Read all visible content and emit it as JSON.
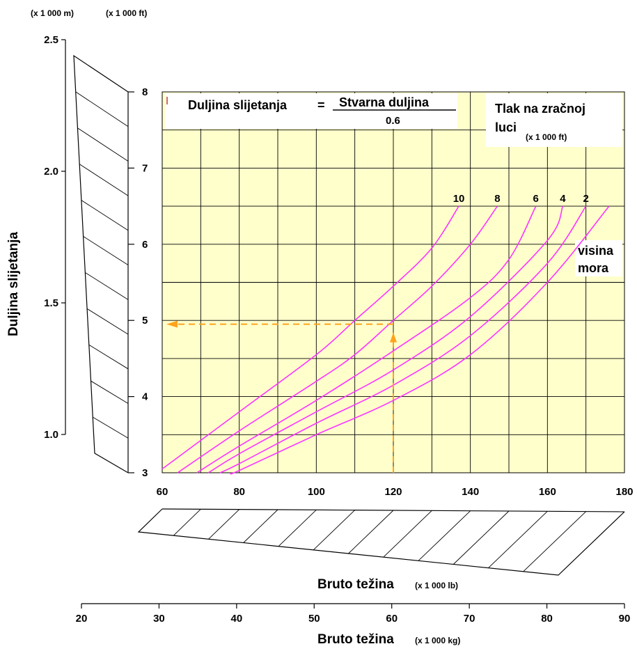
{
  "units": {
    "left_m": "(x 1 000 m)",
    "left_ft": "(x 1 000 ft)",
    "weight_lb": "(x 1 000 lb)",
    "weight_kg": "(x 1 000 kg)",
    "pressure_ft": "(x 1 000 ft)"
  },
  "chart_data": {
    "type": "line",
    "ylabel": "Duljina slijetanja",
    "xlabel_lb": "Bruto težina",
    "xlabel_kg": "Bruto težina",
    "formula": {
      "lhs": "Duljina slijetanja",
      "eq": "=",
      "numerator": "Stvarna duljina",
      "denominator": "0.6"
    },
    "legend_title_line1": "Tlak na zračnoj",
    "legend_title_line2": "luci",
    "sea_level_line1": "visina",
    "sea_level_line2": "mora",
    "xlim_lb": [
      60,
      180
    ],
    "ylim_ft": [
      3,
      8
    ],
    "x_ticks_lb": [
      "60",
      "80",
      "100",
      "120",
      "140",
      "160",
      "180"
    ],
    "y_ticks_ft": [
      "3",
      "4",
      "5",
      "6",
      "7",
      "8"
    ],
    "y_ticks_m": [
      "1.0",
      "1.5",
      "2.0",
      "2.5"
    ],
    "x_ticks_kg": [
      "20",
      "30",
      "40",
      "50",
      "60",
      "70",
      "80",
      "90"
    ],
    "grid": true,
    "background": "#ffffcc",
    "curve_color": "#ff33ff",
    "example_color": "#ffa31a",
    "series": [
      {
        "name": "10",
        "x": [
          60,
          80,
          100,
          110,
          120,
          130,
          137
        ],
        "y": [
          3.05,
          3.8,
          4.55,
          5.0,
          5.45,
          5.95,
          6.5
        ]
      },
      {
        "name": "8",
        "x": [
          64,
          80,
          100,
          110,
          120,
          130,
          140,
          147
        ],
        "y": [
          3.0,
          3.55,
          4.2,
          4.55,
          5.0,
          5.45,
          6.0,
          6.5
        ]
      },
      {
        "name": "6",
        "x": [
          69,
          80,
          100,
          120,
          140,
          150,
          157
        ],
        "y": [
          3.0,
          3.35,
          3.95,
          4.6,
          5.3,
          5.8,
          6.5
        ]
      },
      {
        "name": "4",
        "x": [
          72,
          80,
          100,
          120,
          140,
          160,
          164
        ],
        "y": [
          3.0,
          3.25,
          3.8,
          4.35,
          5.05,
          6.05,
          6.5
        ]
      },
      {
        "name": "2",
        "x": [
          75,
          80,
          100,
          120,
          140,
          160,
          170
        ],
        "y": [
          3.0,
          3.12,
          3.65,
          4.15,
          4.8,
          5.75,
          6.5
        ]
      },
      {
        "name": "",
        "x": [
          78,
          80,
          100,
          120,
          140,
          160,
          176
        ],
        "y": [
          3.0,
          3.03,
          3.5,
          3.95,
          4.55,
          5.5,
          6.5
        ]
      }
    ],
    "example": {
      "x_lb": 120,
      "y_ft": 4.95
    }
  }
}
